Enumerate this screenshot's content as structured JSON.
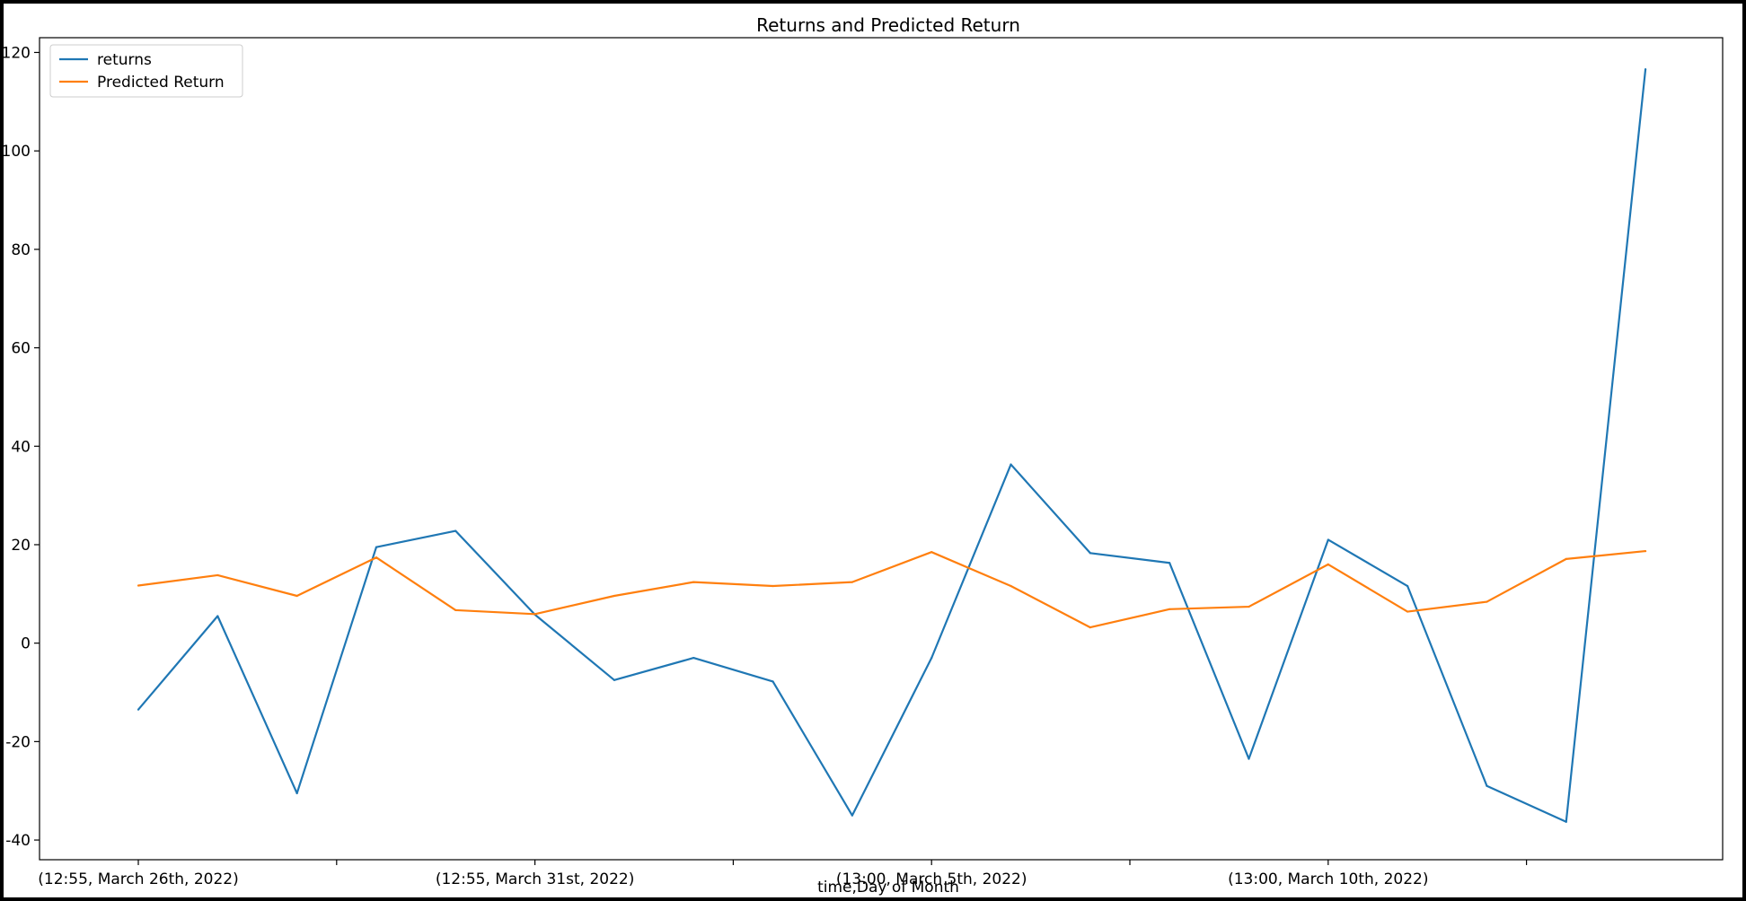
{
  "chart_data": {
    "type": "line",
    "title": "Returns and Predicted Return",
    "xlabel": "time,Day of Month",
    "ylabel": "",
    "ylim": [
      -44,
      123
    ],
    "yticks": [
      -40,
      -20,
      0,
      20,
      40,
      60,
      80,
      100,
      120
    ],
    "xtick_labels": [
      {
        "index": 0,
        "label": "(12:55, March 26th, 2022)"
      },
      {
        "index": 5,
        "label": "(12:55, March 31st, 2022)"
      },
      {
        "index": 10,
        "label": "(13:00, March 5th, 2022)"
      },
      {
        "index": 15,
        "label": "(13:00, March 10th, 2022)"
      }
    ],
    "minor_tick_indices": [
      2.5,
      7.5,
      12.5,
      17.5
    ],
    "grid": false,
    "legend_position": "top-left",
    "series": [
      {
        "name": "returns",
        "color": "#1f77b4",
        "values": [
          -13.5,
          5.5,
          -30.5,
          19.5,
          22.8,
          5.8,
          -7.5,
          -3.0,
          -7.8,
          -35.0,
          -3.0,
          36.3,
          18.3,
          16.3,
          -23.5,
          21.0,
          11.6,
          -29.0,
          -36.3,
          116.6
        ]
      },
      {
        "name": "Predicted Return",
        "color": "#ff7f0e",
        "values": [
          11.7,
          13.8,
          9.6,
          17.4,
          6.7,
          5.9,
          9.6,
          12.4,
          11.6,
          12.4,
          18.5,
          11.6,
          3.2,
          6.9,
          7.4,
          16.0,
          6.4,
          8.4,
          17.1,
          18.7
        ]
      }
    ]
  }
}
